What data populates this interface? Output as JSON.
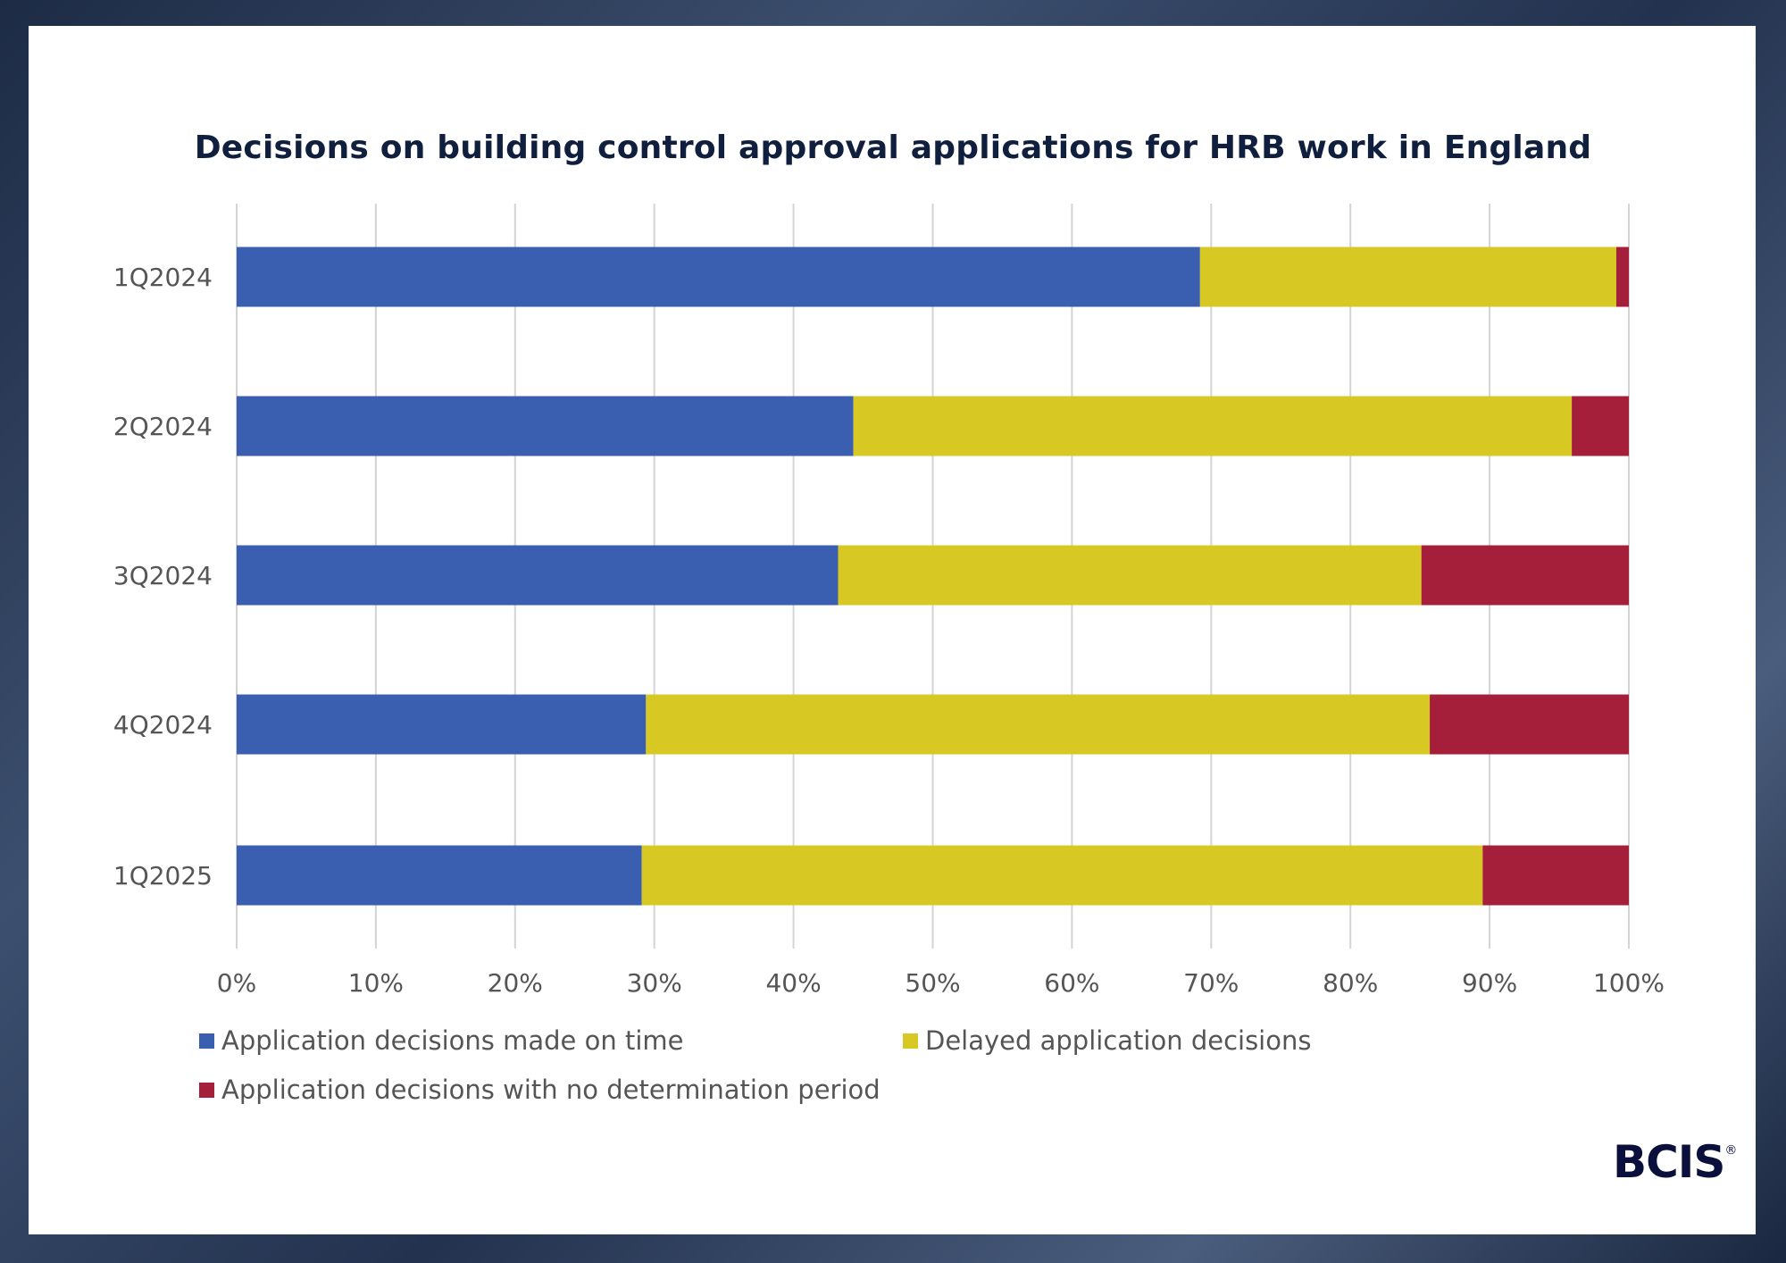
{
  "chart_data": {
    "type": "bar",
    "orientation": "horizontal",
    "stacked": "100%",
    "title": "Decisions on building control approval applications for HRB work in England",
    "categories": [
      "1Q2024",
      "2Q2024",
      "3Q2024",
      "4Q2024",
      "1Q2025"
    ],
    "series": [
      {
        "name": "Application decisions made on time",
        "color": "#3a5fb0",
        "values": [
          69.2,
          44.3,
          43.2,
          29.4,
          29.1
        ]
      },
      {
        "name": "Delayed application decisions",
        "color": "#d8c824",
        "values": [
          29.9,
          51.6,
          41.9,
          56.3,
          60.4
        ]
      },
      {
        "name": "Application decisions with no determination period",
        "color": "#a51f3a",
        "values": [
          0.9,
          4.1,
          14.9,
          14.3,
          10.5
        ]
      }
    ],
    "xlim": [
      0,
      100
    ],
    "xticks": [
      "0%",
      "10%",
      "20%",
      "30%",
      "40%",
      "50%",
      "60%",
      "70%",
      "80%",
      "90%",
      "100%"
    ],
    "grid": true,
    "legend_placement": "bottom"
  },
  "branding": {
    "logo": "BCIS",
    "registered": "®"
  }
}
